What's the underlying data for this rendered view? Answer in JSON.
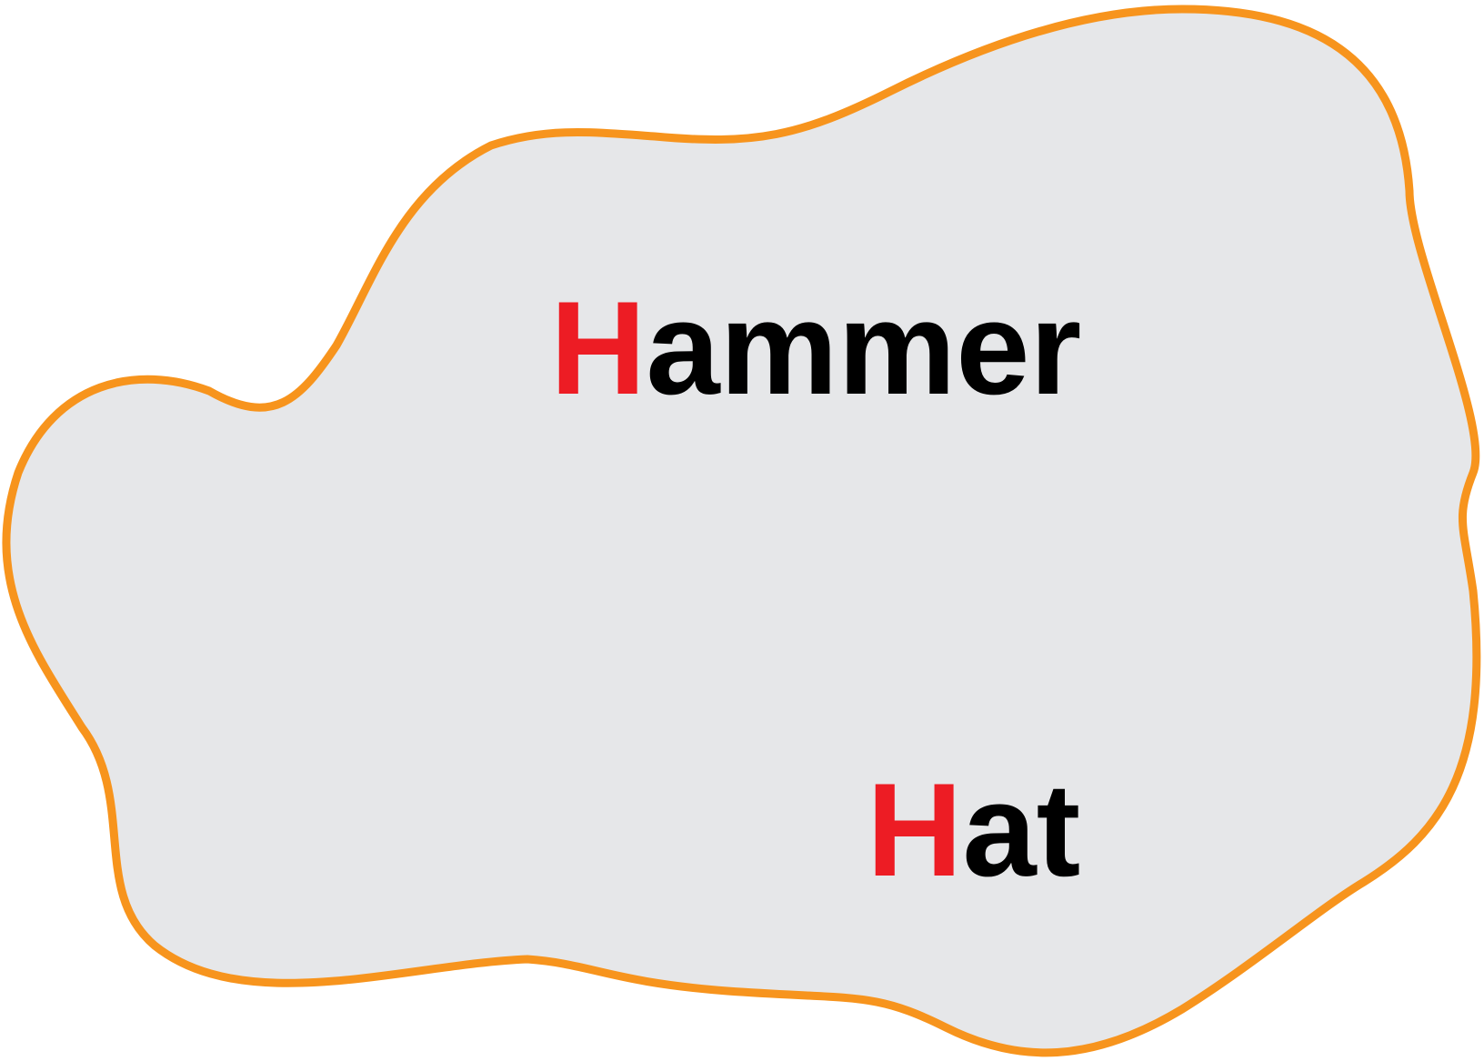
{
  "colors": {
    "region_fill": "#e6e7e9",
    "region_outline": "#f7941d",
    "highlight_letter": "#ed1c24",
    "text": "#000000"
  },
  "words": [
    {
      "initial": "H",
      "rest": "ammer"
    },
    {
      "initial": "H",
      "rest": "at"
    }
  ]
}
